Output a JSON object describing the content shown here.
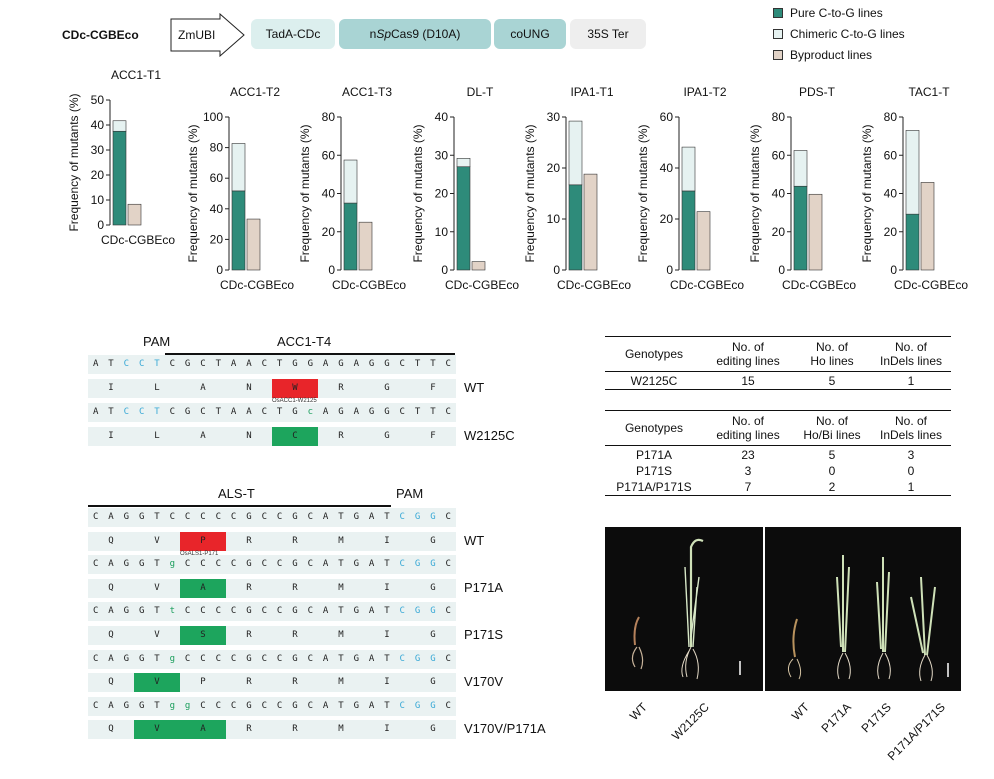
{
  "construct": {
    "label": "CDc-CGBEco",
    "promoter": "ZmUBI",
    "blocks": [
      "TadA-CDc",
      "nSpCas9 (D10A)",
      "coUNG",
      "35S Ter"
    ],
    "cas9_prefix": "n",
    "cas9_italic": "Sp",
    "cas9_suffix": "Cas9 (D10A)"
  },
  "legend": {
    "items": [
      {
        "label": "Pure C-to-G lines",
        "color": "#2e8b7a"
      },
      {
        "label": "Chimeric C-to-G lines",
        "color": "#e6f2f1"
      },
      {
        "label": "Byproduct lines",
        "color": "#e2d3c7"
      }
    ]
  },
  "chart_data": [
    {
      "type": "bar",
      "title": "ACC1-T1",
      "ylabel": "Frequency of mutants (%)",
      "xlabel": "CDc-CGBEco",
      "ylim": [
        0,
        50
      ],
      "ticks": [
        0,
        10,
        20,
        30,
        40,
        50
      ],
      "series": [
        {
          "name": "Pure C-to-G lines",
          "values": [
            37.5
          ]
        },
        {
          "name": "Chimeric C-to-G lines",
          "values": [
            4.2
          ]
        },
        {
          "name": "Byproduct lines",
          "values": [
            8.3
          ]
        }
      ]
    },
    {
      "type": "bar",
      "title": "ACC1-T2",
      "ylabel": "Frequency of mutants (%)",
      "xlabel": "CDc-CGBEco",
      "ylim": [
        0,
        100
      ],
      "ticks": [
        0,
        20,
        40,
        60,
        80,
        100
      ],
      "series": [
        {
          "name": "Pure C-to-G lines",
          "values": [
            51.7
          ]
        },
        {
          "name": "Chimeric C-to-G lines",
          "values": [
            31.0
          ]
        },
        {
          "name": "Byproduct lines",
          "values": [
            33.3
          ]
        }
      ]
    },
    {
      "type": "bar",
      "title": "ACC1-T3",
      "ylabel": "Frequency of mutants (%)",
      "xlabel": "CDc-CGBEco",
      "ylim": [
        0,
        80
      ],
      "ticks": [
        0,
        20,
        40,
        60,
        80
      ],
      "series": [
        {
          "name": "Pure C-to-G lines",
          "values": [
            35.0
          ]
        },
        {
          "name": "Chimeric C-to-G lines",
          "values": [
            22.5
          ]
        },
        {
          "name": "Byproduct lines",
          "values": [
            25.0
          ]
        }
      ]
    },
    {
      "type": "bar",
      "title": "DL-T",
      "ylabel": "Frequency of mutants (%)",
      "xlabel": "CDc-CGBEco",
      "ylim": [
        0,
        40
      ],
      "ticks": [
        0,
        10,
        20,
        30,
        40
      ],
      "series": [
        {
          "name": "Pure C-to-G lines",
          "values": [
            27.0
          ]
        },
        {
          "name": "Chimeric C-to-G lines",
          "values": [
            2.2
          ]
        },
        {
          "name": "Byproduct lines",
          "values": [
            2.2
          ]
        }
      ]
    },
    {
      "type": "bar",
      "title": "IPA1-T1",
      "ylabel": "Frequency of mutants (%)",
      "xlabel": "CDc-CGBEco",
      "ylim": [
        0,
        30
      ],
      "ticks": [
        0,
        10,
        20,
        30
      ],
      "series": [
        {
          "name": "Pure C-to-G lines",
          "values": [
            16.7
          ]
        },
        {
          "name": "Chimeric C-to-G lines",
          "values": [
            12.5
          ]
        },
        {
          "name": "Byproduct lines",
          "values": [
            18.8
          ]
        }
      ]
    },
    {
      "type": "bar",
      "title": "IPA1-T2",
      "ylabel": "Frequency of mutants (%)",
      "xlabel": "CDc-CGBEco",
      "ylim": [
        0,
        60
      ],
      "ticks": [
        0,
        20,
        40,
        60
      ],
      "series": [
        {
          "name": "Pure C-to-G lines",
          "values": [
            31.0
          ]
        },
        {
          "name": "Chimeric C-to-G lines",
          "values": [
            17.2
          ]
        },
        {
          "name": "Byproduct lines",
          "values": [
            22.9
          ]
        }
      ]
    },
    {
      "type": "bar",
      "title": "PDS-T",
      "ylabel": "Frequency of mutants (%)",
      "xlabel": "CDc-CGBEco",
      "ylim": [
        0,
        80
      ],
      "ticks": [
        0,
        20,
        40,
        60,
        80
      ],
      "series": [
        {
          "name": "Pure C-to-G lines",
          "values": [
            43.8
          ]
        },
        {
          "name": "Chimeric C-to-G lines",
          "values": [
            18.7
          ]
        },
        {
          "name": "Byproduct lines",
          "values": [
            39.6
          ]
        }
      ]
    },
    {
      "type": "bar",
      "title": "TAC1-T",
      "ylabel": "Frequency of mutants (%)",
      "xlabel": "CDc-CGBEco",
      "ylim": [
        0,
        80
      ],
      "ticks": [
        0,
        20,
        40,
        60,
        80
      ],
      "series": [
        {
          "name": "Pure C-to-G lines",
          "values": [
            29.2
          ]
        },
        {
          "name": "Chimeric C-to-G lines",
          "values": [
            43.8
          ]
        },
        {
          "name": "Byproduct lines",
          "values": [
            45.8
          ]
        }
      ]
    }
  ],
  "acc1_panel": {
    "pam_label": "PAM",
    "target_label": "ACC1-T4",
    "rows": [
      {
        "kind": "dna",
        "chars": [
          "A",
          "T",
          "C",
          "C",
          "T",
          "C",
          "G",
          "C",
          "T",
          "A",
          "A",
          "C",
          "T",
          "G",
          "G",
          "A",
          "G",
          "A",
          "G",
          "G",
          "C",
          "T",
          "T",
          "C"
        ],
        "pam": [
          2,
          3,
          4
        ],
        "mut": [],
        "label": ""
      },
      {
        "kind": "aa",
        "chars": [
          "I",
          "L",
          "A",
          "N",
          "W",
          "R",
          "G",
          "F"
        ],
        "hl": 4,
        "hl_color": "red",
        "label": "WT",
        "note": "OsACC1-W2125"
      },
      {
        "kind": "dna",
        "chars": [
          "A",
          "T",
          "C",
          "C",
          "T",
          "C",
          "G",
          "C",
          "T",
          "A",
          "A",
          "C",
          "T",
          "G",
          "c",
          "A",
          "G",
          "A",
          "G",
          "G",
          "C",
          "T",
          "T",
          "C"
        ],
        "pam": [
          2,
          3,
          4
        ],
        "mut": [
          14
        ],
        "label": ""
      },
      {
        "kind": "aa",
        "chars": [
          "I",
          "L",
          "A",
          "N",
          "C",
          "R",
          "G",
          "F"
        ],
        "hl": 4,
        "hl_color": "green",
        "label": "W2125C",
        "note": ""
      }
    ]
  },
  "als_panel": {
    "target_label": "ALS-T",
    "pam_label": "PAM",
    "rows": [
      {
        "kind": "dna",
        "chars": [
          "C",
          "A",
          "G",
          "G",
          "T",
          "C",
          "C",
          "C",
          "C",
          "C",
          "G",
          "C",
          "C",
          "G",
          "C",
          "A",
          "T",
          "G",
          "A",
          "T",
          "C",
          "G",
          "G",
          "C"
        ],
        "pam": [
          20,
          21,
          22
        ],
        "mut": [],
        "label": ""
      },
      {
        "kind": "aa",
        "chars": [
          "Q",
          "V",
          "P",
          "R",
          "R",
          "M",
          "I",
          "G"
        ],
        "hl": [
          2
        ],
        "hl_color": "red",
        "label": "WT",
        "note": "OsALS1-P171"
      },
      {
        "kind": "dna",
        "chars": [
          "C",
          "A",
          "G",
          "G",
          "T",
          "g",
          "C",
          "C",
          "C",
          "C",
          "G",
          "C",
          "C",
          "G",
          "C",
          "A",
          "T",
          "G",
          "A",
          "T",
          "C",
          "G",
          "G",
          "C"
        ],
        "pam": [
          20,
          21,
          22
        ],
        "mut": [
          5
        ],
        "label": ""
      },
      {
        "kind": "aa",
        "chars": [
          "Q",
          "V",
          "A",
          "R",
          "R",
          "M",
          "I",
          "G"
        ],
        "hl": [
          2
        ],
        "hl_color": "green",
        "label": "P171A",
        "note": ""
      },
      {
        "kind": "dna",
        "chars": [
          "C",
          "A",
          "G",
          "G",
          "T",
          "t",
          "C",
          "C",
          "C",
          "C",
          "G",
          "C",
          "C",
          "G",
          "C",
          "A",
          "T",
          "G",
          "A",
          "T",
          "C",
          "G",
          "G",
          "C"
        ],
        "pam": [
          20,
          21,
          22
        ],
        "mut": [
          5
        ],
        "label": ""
      },
      {
        "kind": "aa",
        "chars": [
          "Q",
          "V",
          "S",
          "R",
          "R",
          "M",
          "I",
          "G"
        ],
        "hl": [
          2
        ],
        "hl_color": "green",
        "label": "P171S",
        "note": ""
      },
      {
        "kind": "dna",
        "chars": [
          "C",
          "A",
          "G",
          "G",
          "T",
          "g",
          "C",
          "C",
          "C",
          "C",
          "G",
          "C",
          "C",
          "G",
          "C",
          "A",
          "T",
          "G",
          "A",
          "T",
          "C",
          "G",
          "G",
          "C"
        ],
        "pam": [
          20,
          21,
          22
        ],
        "mut": [
          5
        ],
        "label": ""
      },
      {
        "kind": "aa",
        "chars": [
          "Q",
          "V",
          "P",
          "R",
          "R",
          "M",
          "I",
          "G"
        ],
        "hl": [
          1
        ],
        "hl_color": "green",
        "label": "V170V",
        "note": ""
      },
      {
        "kind": "dna",
        "chars": [
          "C",
          "A",
          "G",
          "G",
          "T",
          "g",
          "g",
          "C",
          "C",
          "C",
          "G",
          "C",
          "C",
          "G",
          "C",
          "A",
          "T",
          "G",
          "A",
          "T",
          "C",
          "G",
          "G",
          "C"
        ],
        "pam": [
          20,
          21,
          22
        ],
        "mut": [
          5,
          6
        ],
        "label": ""
      },
      {
        "kind": "aa",
        "chars": [
          "Q",
          "V",
          "A",
          "R",
          "R",
          "M",
          "I",
          "G"
        ],
        "hl": [
          1,
          2
        ],
        "hl_color": "green",
        "label": "V170V/P171A",
        "note": ""
      }
    ]
  },
  "table1": {
    "headers": [
      [
        "Genotypes"
      ],
      [
        "No. of",
        "editing lines"
      ],
      [
        "No. of",
        "Ho lines"
      ],
      [
        "No. of",
        "InDels lines"
      ]
    ],
    "rows": [
      [
        "W2125C",
        "15",
        "5",
        "1"
      ]
    ]
  },
  "table2": {
    "headers": [
      [
        "Genotypes"
      ],
      [
        "No. of",
        "editing lines"
      ],
      [
        "No. of",
        "Ho/Bi lines"
      ],
      [
        "No. of",
        "InDels lines"
      ]
    ],
    "rows": [
      [
        "P171A",
        "23",
        "5",
        "3"
      ],
      [
        "P171S",
        "3",
        "0",
        "0"
      ],
      [
        "P171A/P171S",
        "7",
        "2",
        "1"
      ]
    ]
  },
  "photos": {
    "left_labels": [
      "WT",
      "W2125C"
    ],
    "right_labels": [
      "WT",
      "P171A",
      "P171S",
      "P171A/P171S"
    ]
  }
}
